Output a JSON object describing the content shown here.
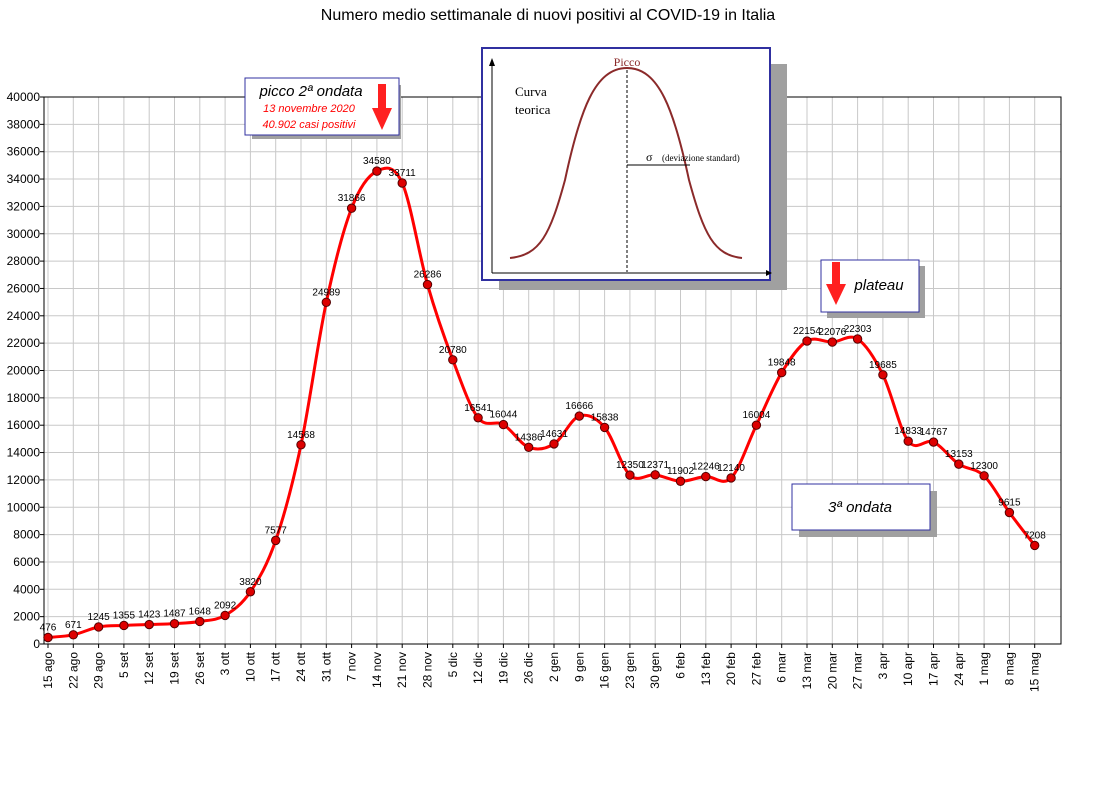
{
  "chart_data": {
    "type": "line",
    "title": "Numero medio settimanale di nuovi positivi al COVID-19 in Italia",
    "ylim": [
      0,
      40000
    ],
    "yticks": [
      0,
      2000,
      4000,
      6000,
      8000,
      10000,
      12000,
      14000,
      16000,
      18000,
      20000,
      22000,
      24000,
      26000,
      28000,
      30000,
      32000,
      34000,
      36000,
      38000,
      40000
    ],
    "grid": true,
    "line_color": "#ff0000",
    "marker_color": "#dd0000",
    "categories": [
      "15 ago",
      "22 ago",
      "29 ago",
      "5 set",
      "12 set",
      "19 set",
      "26 set",
      "3 ott",
      "10 ott",
      "17 ott",
      "24 ott",
      "31 ott",
      "7 nov",
      "14 nov",
      "21 nov",
      "28 nov",
      "5 dic",
      "12 dic",
      "19 dic",
      "26 dic",
      "2 gen",
      "9 gen",
      "16 gen",
      "23 gen",
      "30 gen",
      "6 feb",
      "13 feb",
      "20 feb",
      "27 feb",
      "6 mar",
      "13 mar",
      "20 mar",
      "27 mar",
      "3 apr",
      "10 apr",
      "17 apr",
      "24 apr",
      "1 mag",
      "8 mag",
      "15 mag"
    ],
    "values": [
      476,
      671,
      1245,
      1355,
      1423,
      1487,
      1648,
      2092,
      3820,
      7577,
      14568,
      24989,
      31866,
      34580,
      33711,
      26286,
      20780,
      16541,
      16044,
      14386,
      14631,
      16666,
      15838,
      12350,
      12371,
      11902,
      12246,
      12140,
      16004,
      19848,
      22154,
      22076,
      22303,
      19685,
      14833,
      14767,
      13153,
      12300,
      9615,
      7208
    ],
    "annotations": {
      "peak_title": "picco 2ª ondata",
      "peak_date": "13 novembre 2020",
      "peak_cases": "40.902 casi positivi",
      "plateau": "plateau",
      "third_wave": "3ª ondata"
    },
    "inset": {
      "peak_label": "Picco",
      "curve_label_1": "Curva",
      "curve_label_2": "teorica",
      "sigma_symbol": "σ",
      "sigma_label": "(deviazione standard)"
    }
  }
}
